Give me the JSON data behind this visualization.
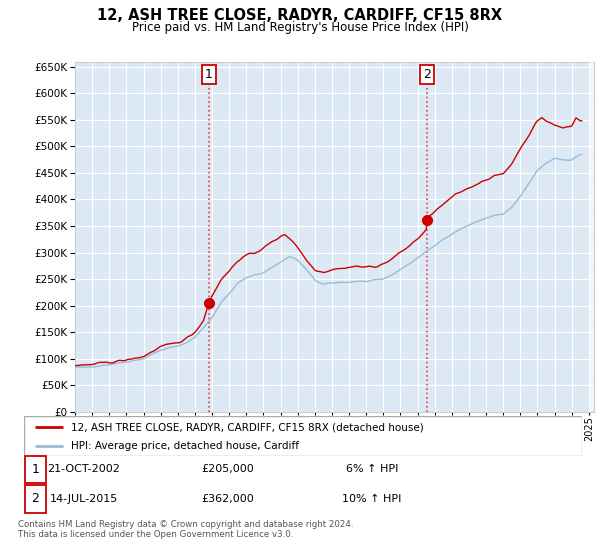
{
  "title": "12, ASH TREE CLOSE, RADYR, CARDIFF, CF15 8RX",
  "subtitle": "Price paid vs. HM Land Registry's House Price Index (HPI)",
  "ylim": [
    0,
    660000
  ],
  "yticks": [
    0,
    50000,
    100000,
    150000,
    200000,
    250000,
    300000,
    350000,
    400000,
    450000,
    500000,
    550000,
    600000,
    650000
  ],
  "xlim_start": 1995.0,
  "xlim_end": 2025.3,
  "bg_color": "#dce9f5",
  "grid_color": "#ffffff",
  "sale_marker_color": "#cc0000",
  "hpi_line_color": "#99bbdd",
  "transaction1": {
    "date": "21-OCT-2002",
    "price": 205000,
    "pct": "6%",
    "label": "1",
    "x": 2002.8
  },
  "transaction2": {
    "date": "14-JUL-2015",
    "price": 362000,
    "pct": "10%",
    "label": "2",
    "x": 2015.53
  },
  "legend_line1": "12, ASH TREE CLOSE, RADYR, CARDIFF, CF15 8RX (detached house)",
  "legend_line2": "HPI: Average price, detached house, Cardiff",
  "footnote": "Contains HM Land Registry data © Crown copyright and database right 2024.\nThis data is licensed under the Open Government Licence v3.0."
}
